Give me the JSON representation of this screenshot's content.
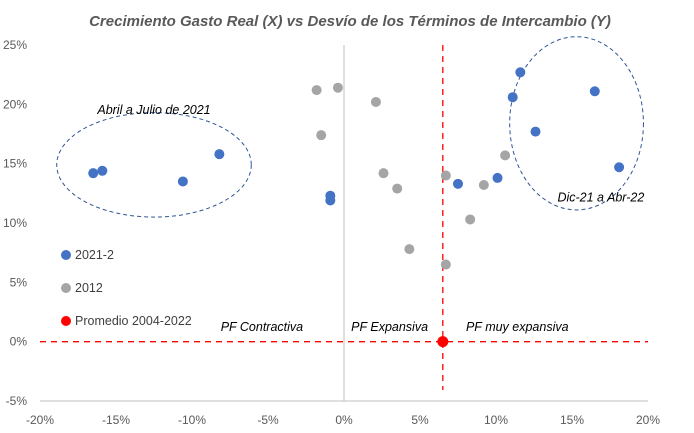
{
  "chart_data": {
    "type": "scatter",
    "title": "Crecimiento  Gasto Real (X) vs Desvío de los Términos de Intercambio (Y)",
    "xlim": [
      -20,
      20
    ],
    "ylim": [
      -5,
      25
    ],
    "x_ticks": [
      -20,
      -15,
      -10,
      -5,
      0,
      5,
      10,
      15,
      20
    ],
    "y_ticks": [
      -5,
      0,
      5,
      10,
      15,
      20,
      25
    ],
    "x_tick_labels": [
      "-20%",
      "-15%",
      "-10%",
      "-5%",
      "0%",
      "5%",
      "10%",
      "15%",
      "20%"
    ],
    "y_tick_labels": [
      "-5%",
      "0%",
      "5%",
      "10%",
      "15%",
      "20%",
      "25%"
    ],
    "series": [
      {
        "name": "2021-2",
        "color": "#4472c4",
        "points": [
          {
            "x": -16.5,
            "y": 14.2
          },
          {
            "x": -15.9,
            "y": 14.4
          },
          {
            "x": -10.6,
            "y": 13.5
          },
          {
            "x": -8.2,
            "y": 15.8
          },
          {
            "x": -0.9,
            "y": 12.3
          },
          {
            "x": -0.9,
            "y": 11.9
          },
          {
            "x": 7.5,
            "y": 13.3
          },
          {
            "x": 10.1,
            "y": 13.8
          },
          {
            "x": 11.1,
            "y": 20.6
          },
          {
            "x": 11.6,
            "y": 22.7
          },
          {
            "x": 12.6,
            "y": 17.7
          },
          {
            "x": 16.5,
            "y": 21.1
          },
          {
            "x": 18.1,
            "y": 14.7
          }
        ]
      },
      {
        "name": "2012",
        "color": "#a5a5a5",
        "points": [
          {
            "x": -1.8,
            "y": 21.2
          },
          {
            "x": -0.4,
            "y": 21.4
          },
          {
            "x": -1.5,
            "y": 17.4
          },
          {
            "x": 2.1,
            "y": 20.2
          },
          {
            "x": 2.6,
            "y": 14.2
          },
          {
            "x": 3.5,
            "y": 12.9
          },
          {
            "x": 4.3,
            "y": 7.8
          },
          {
            "x": 6.7,
            "y": 14.0
          },
          {
            "x": 6.7,
            "y": 6.5
          },
          {
            "x": 8.3,
            "y": 10.3
          },
          {
            "x": 9.2,
            "y": 13.2
          },
          {
            "x": 10.6,
            "y": 15.7
          }
        ]
      },
      {
        "name": "Promedio 2004-2022",
        "color": "#ff0000",
        "points": [
          {
            "x": 6.5,
            "y": 0.0
          }
        ]
      }
    ],
    "reference_lines": {
      "horizontal_y": 0,
      "vertical_x": 6.5,
      "style": "dashed",
      "color": "#ff0000"
    },
    "annotations": [
      {
        "text": "Abril a Julio de 2021",
        "x": -12.5,
        "y": 19.2
      },
      {
        "text": "Dic-21 a Abr-22",
        "x": 16.9,
        "y": 11.8
      },
      {
        "text": "PF Contractiva",
        "x": -5.4,
        "y": 0.9
      },
      {
        "text": "PF Expansiva",
        "x": 3.0,
        "y": 0.9
      },
      {
        "text": "PF muy expansiva",
        "x": 11.4,
        "y": 0.9
      }
    ],
    "ellipses": [
      {
        "group": "Abril a Julio de 2021",
        "center_x": -12.5,
        "center_y": 14.9,
        "semi_x": 6.4,
        "semi_y": 4.4
      },
      {
        "group": "Dic-21 a Abr-22",
        "center_x": 15.3,
        "center_y": 18.4,
        "semi_x": 4.4,
        "semi_y": 7.3
      }
    ],
    "legend": {
      "position": "left",
      "entries": [
        "2021-2",
        "2012",
        "Promedio 2004-2022"
      ]
    },
    "grid": false
  }
}
